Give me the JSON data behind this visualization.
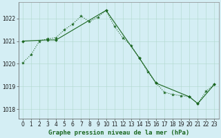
{
  "title": "Graphe pression niveau de la mer (hPa)",
  "background_color": "#d4eef4",
  "plot_bg_color": "#d4eef4",
  "grid_color": "#b0d8cc",
  "line_color": "#1a6620",
  "marker_color": "#1a6620",
  "xlim": [
    -0.5,
    23.5
  ],
  "ylim": [
    1017.6,
    1022.7
  ],
  "yticks": [
    1018,
    1019,
    1020,
    1021,
    1022
  ],
  "xticks": [
    0,
    1,
    2,
    3,
    4,
    5,
    6,
    7,
    8,
    9,
    10,
    11,
    12,
    13,
    14,
    15,
    16,
    17,
    18,
    19,
    20,
    21,
    22,
    23
  ],
  "series1_x": [
    0,
    1,
    2,
    3,
    4,
    5,
    6,
    7,
    8,
    9,
    10,
    11,
    12,
    13,
    14,
    15,
    16,
    17,
    18,
    19,
    20,
    21,
    22,
    23
  ],
  "series1_y": [
    1020.05,
    1020.4,
    1021.0,
    1021.1,
    1021.15,
    1021.5,
    1021.75,
    1022.1,
    1021.85,
    1022.05,
    1022.35,
    1021.65,
    1021.15,
    1020.8,
    1020.25,
    1019.65,
    1019.15,
    1018.75,
    1018.65,
    1018.6,
    1018.55,
    1018.25,
    1018.8,
    1019.1
  ],
  "series2_x": [
    0,
    3,
    4,
    10,
    14,
    16,
    20,
    21,
    23
  ],
  "series2_y": [
    1021.0,
    1021.05,
    1021.05,
    1022.35,
    1020.25,
    1019.15,
    1018.55,
    1018.25,
    1019.1
  ],
  "title_fontsize": 6.5,
  "tick_fontsize": 5.5,
  "line_width": 0.8,
  "marker_size": 2.0
}
